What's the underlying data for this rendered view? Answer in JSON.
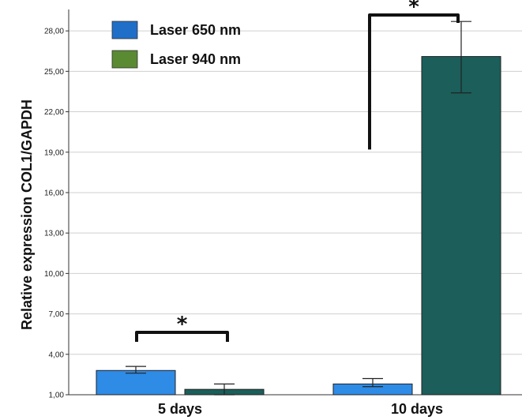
{
  "chart_data": {
    "type": "bar",
    "ylabel": "Relative expression COL1/GAPDH",
    "xlabel": "",
    "categories": [
      "5 days",
      "10 days"
    ],
    "ylim": [
      1,
      30
    ],
    "yticks": [
      "1,00",
      "4,00",
      "7,00",
      "10,00",
      "13,00",
      "16,00",
      "19,00",
      "22,00",
      "25,00",
      "28,00"
    ],
    "grid": "horizontal",
    "legend": "top-left",
    "series": [
      {
        "name": "Laser 650 nm",
        "values": [
          2.8,
          1.8
        ],
        "err_low": [
          2.6,
          1.6
        ],
        "err_high": [
          3.1,
          2.2
        ],
        "color": "#2e8be6",
        "legend_color": "#1f6fc8"
      },
      {
        "name": "Laser 940 nm",
        "values": [
          1.4,
          26.1
        ],
        "err_low": [
          1.0,
          23.4
        ],
        "err_high": [
          1.8,
          28.7
        ],
        "color": "#1b5e5a",
        "legend_color": "#5a8a32"
      }
    ],
    "annotations": [
      {
        "text": "*",
        "category": 0,
        "kind": "between-bars"
      },
      {
        "text": "*",
        "category": 1,
        "kind": "bracket-top"
      }
    ]
  }
}
